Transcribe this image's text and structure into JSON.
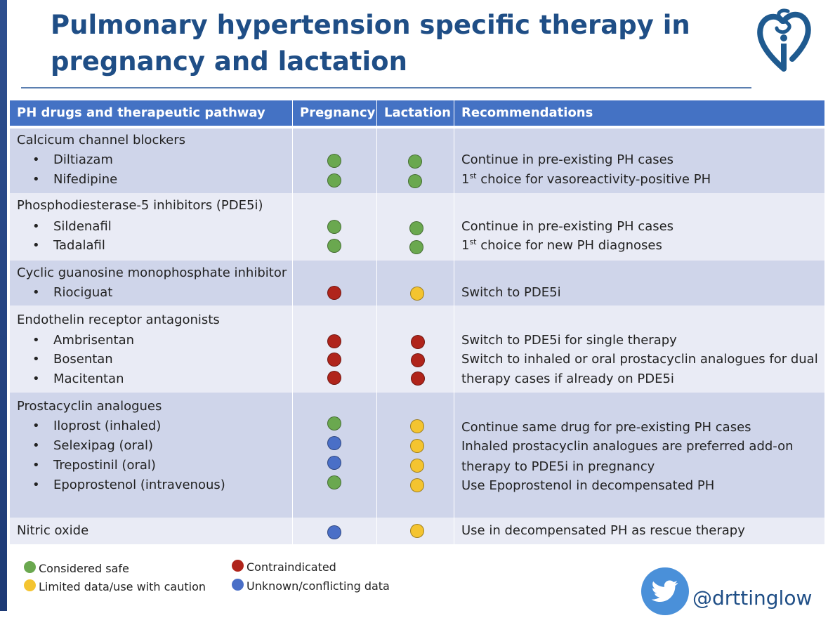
{
  "title": "Pulmonary hypertension specific therapy in pregnancy and lactation",
  "colors": {
    "safe": "#6aa84f",
    "contraindicated": "#b0241b",
    "caution": "#f4c430",
    "unknown": "#4a6fc7",
    "header": "#4472c4"
  },
  "table": {
    "headers": {
      "pathway": "PH drugs and therapeutic pathway",
      "pregnancy": "Pregnancy",
      "lactation": "Lactation",
      "recommendations": "Recommendations"
    },
    "groups": [
      {
        "name": "Calcicum channel blockers",
        "drugs": [
          {
            "name": "Diltiazam",
            "pregnancy": "safe",
            "lactation": "safe"
          },
          {
            "name": "Nifedipine",
            "pregnancy": "safe",
            "lactation": "safe"
          }
        ],
        "recommendations": [
          "Continue in pre-existing PH cases",
          "choice for vasoreactivity-positive  PH"
        ]
      },
      {
        "name": "Phosphodiesterase-5 inhibitors (PDE5i)",
        "drugs": [
          {
            "name": "Sildenafil",
            "pregnancy": "safe",
            "lactation": "safe"
          },
          {
            "name": "Tadalafil",
            "pregnancy": "safe",
            "lactation": "safe"
          }
        ],
        "recommendations": [
          "Continue in pre-existing PH cases",
          "choice for new PH diagnoses"
        ]
      },
      {
        "name": "Cyclic guanosine monophosphate inhibitor",
        "drugs": [
          {
            "name": "Riociguat",
            "pregnancy": "contraindicated",
            "lactation": "caution"
          }
        ],
        "recommendations": [
          "Switch to PDE5i"
        ]
      },
      {
        "name": "Endothelin receptor antagonists",
        "drugs": [
          {
            "name": "Ambrisentan",
            "pregnancy": "contraindicated",
            "lactation": "contraindicated"
          },
          {
            "name": "Bosentan",
            "pregnancy": "contraindicated",
            "lactation": "contraindicated"
          },
          {
            "name": "Macitentan",
            "pregnancy": "contraindicated",
            "lactation": "contraindicated"
          }
        ],
        "recommendations": [
          "Switch to PDE5i for single therapy",
          "Switch to inhaled or oral prostacyclin analogues for dual",
          "therapy cases if already on PDE5i"
        ]
      },
      {
        "name": "Prostacyclin analogues",
        "drugs": [
          {
            "name": "Iloprost (inhaled)",
            "pregnancy": "safe",
            "lactation": "caution"
          },
          {
            "name": "Selexipag (oral)",
            "pregnancy": "unknown",
            "lactation": "caution"
          },
          {
            "name": "Trepostinil (oral)",
            "pregnancy": "unknown",
            "lactation": "caution"
          },
          {
            "name": "Epoprostenol  (intravenous)",
            "pregnancy": "safe",
            "lactation": "caution"
          }
        ],
        "recommendations": [
          "Continue same drug for pre-existing PH cases",
          "Inhaled prostacyclin analogues are preferred  add-on",
          "therapy to PDE5i in pregnancy",
          "Use Epoprostenol  in decompensated  PH"
        ]
      },
      {
        "name": "Nitric oxide",
        "drugs": [],
        "pregnancy": "unknown",
        "lactation": "caution",
        "recommendations": [
          "Use in decompensated  PH as rescue therapy"
        ]
      }
    ],
    "first_superscript": "1",
    "first_suffix": "st"
  },
  "legend": {
    "safe": "Considered safe",
    "caution": "Limited data/use with caution",
    "contraindicated": "Contraindicated",
    "unknown": "Unknown/conflicting data"
  },
  "twitter_handle": "@drttinglow",
  "icons": {
    "logo": "heart-i-logo",
    "twitter": "twitter-bird-icon"
  }
}
